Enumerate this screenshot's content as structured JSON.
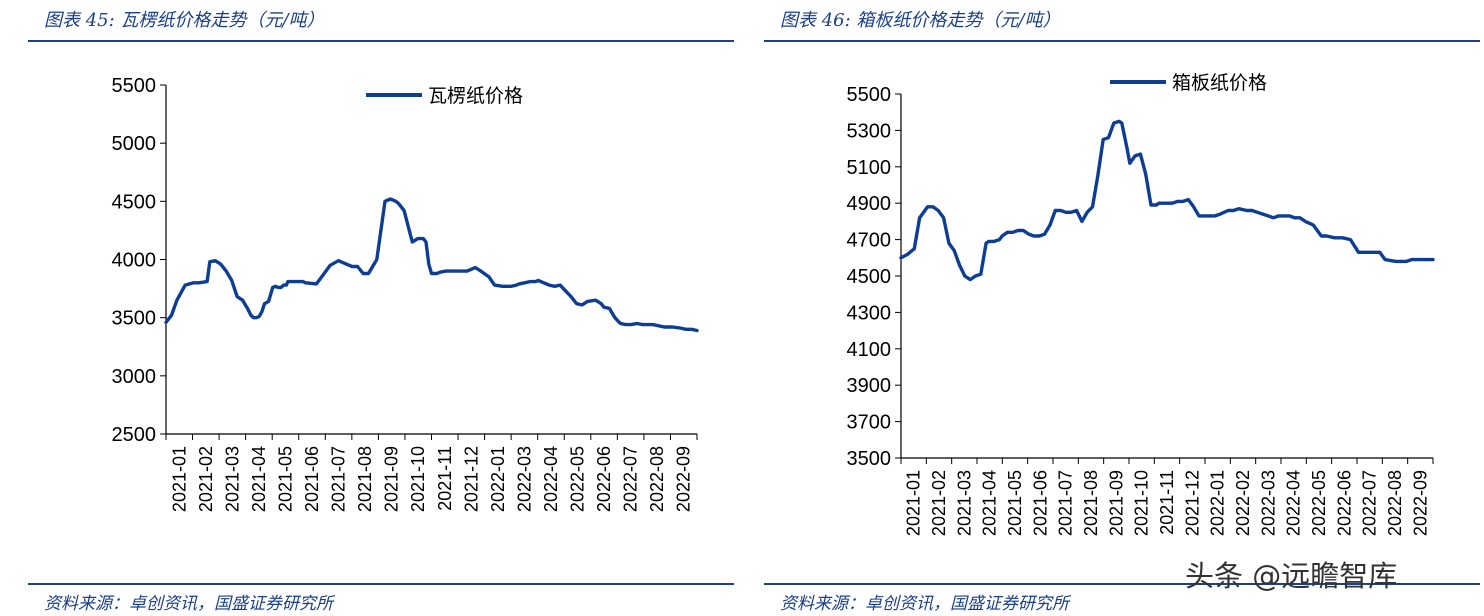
{
  "left": {
    "caption": "图表 45:  瓦楞纸价格走势（元/吨）",
    "source": "资料来源：卓创资讯，国盛证券研究所"
  },
  "right": {
    "caption": "图表 46:  箱板纸价格走势（元/吨）",
    "source": "资料来源：卓创资讯，国盛证券研究所"
  },
  "watermark": "头条 @远瞻智库",
  "colors": {
    "line": "#0e3d94",
    "accent": "#1a3f8f"
  },
  "chart_data": [
    {
      "type": "line",
      "title": "",
      "xlabel": "",
      "ylabel": "",
      "ylim": [
        2500,
        5500
      ],
      "yticks": [
        2500,
        3000,
        3500,
        4000,
        4500,
        5000,
        5500
      ],
      "categories": [
        "2021-01",
        "2021-02",
        "2021-03",
        "2021-04",
        "2021-05",
        "2021-06",
        "2021-07",
        "2021-08",
        "2021-09",
        "2021-10",
        "2021-11",
        "2021-12",
        "2022-01",
        "2022-03",
        "2022-04",
        "2022-05",
        "2022-06",
        "2022-07",
        "2022-08",
        "2022-09"
      ],
      "grid": false,
      "legend": "top-center",
      "series": [
        {
          "name": "瓦楞纸价格",
          "x": [
            0,
            0.2,
            0.4,
            0.7,
            1.0,
            1.2,
            1.5,
            1.6,
            1.8,
            2.0,
            2.2,
            2.4,
            2.6,
            2.8,
            3.0,
            3.1,
            3.2,
            3.3,
            3.4,
            3.5,
            3.6,
            3.75,
            3.9,
            4.0,
            4.1,
            4.2,
            4.25,
            4.3,
            4.4,
            4.45,
            4.6,
            4.8,
            5.0,
            5.1,
            5.5,
            6.0,
            6.3,
            6.6,
            6.8,
            7.0,
            7.2,
            7.4,
            7.5,
            7.7,
            8.0,
            8.2,
            8.4,
            8.5,
            8.7,
            9.0,
            9.2,
            9.4,
            9.5,
            9.6,
            9.7,
            9.8,
            9.9,
            10.0,
            10.2,
            10.3,
            10.4,
            10.5,
            10.7,
            11.0,
            11.3,
            11.5,
            11.8,
            12.0,
            12.3,
            12.6,
            12.8,
            12.9,
            13.1,
            13.3,
            13.5,
            13.6,
            13.8,
            14.0,
            14.2,
            14.4,
            14.6,
            14.8,
            15.0,
            15.2,
            15.4,
            15.7,
            15.9,
            16.0,
            16.2,
            16.4,
            16.6,
            16.8,
            17.0,
            17.2,
            17.4,
            17.6,
            17.8,
            18.0,
            18.2,
            18.5,
            18.8,
            19.0,
            19.2,
            19.4
          ],
          "values": [
            3460,
            3520,
            3650,
            3780,
            3800,
            3800,
            3810,
            3980,
            3990,
            3960,
            3900,
            3820,
            3680,
            3650,
            3570,
            3520,
            3500,
            3500,
            3510,
            3550,
            3620,
            3640,
            3760,
            3770,
            3760,
            3760,
            3770,
            3780,
            3780,
            3810,
            3810,
            3810,
            3810,
            3800,
            3790,
            3950,
            3990,
            3960,
            3940,
            3940,
            3880,
            3880,
            3920,
            4000,
            4500,
            4520,
            4500,
            4480,
            4420,
            4150,
            4180,
            4180,
            4150,
            3960,
            3880,
            3880,
            3880,
            3890,
            3900,
            3900,
            3900,
            3900,
            3900,
            3900,
            3930,
            3900,
            3850,
            3780,
            3770,
            3770,
            3780,
            3790,
            3800,
            3810,
            3810,
            3820,
            3800,
            3780,
            3770,
            3780,
            3730,
            3680,
            3620,
            3610,
            3640,
            3650,
            3620,
            3590,
            3580,
            3500,
            3450,
            3440,
            3440,
            3450,
            3440,
            3440,
            3440,
            3430,
            3420,
            3420,
            3410,
            3400,
            3400,
            3390
          ]
        }
      ]
    },
    {
      "type": "line",
      "title": "",
      "xlabel": "",
      "ylabel": "",
      "ylim": [
        3500,
        5500
      ],
      "yticks": [
        3500,
        3700,
        3900,
        4100,
        4300,
        4500,
        4700,
        4900,
        5100,
        5300,
        5500
      ],
      "categories": [
        "2021-01",
        "2021-02",
        "2021-03",
        "2021-04",
        "2021-05",
        "2021-06",
        "2021-07",
        "2021-08",
        "2021-09",
        "2021-10",
        "2021-11",
        "2021-12",
        "2022-01",
        "2022-02",
        "2022-03",
        "2022-04",
        "2022-05",
        "2022-06",
        "2022-07",
        "2022-08",
        "2022-09"
      ],
      "grid": false,
      "legend": "top-center",
      "series": [
        {
          "name": "箱板纸价格",
          "x": [
            0,
            0.25,
            0.5,
            0.7,
            0.8,
            1.0,
            1.2,
            1.4,
            1.6,
            1.8,
            2.0,
            2.2,
            2.4,
            2.6,
            2.8,
            3.0,
            3.2,
            3.3,
            3.5,
            3.7,
            3.8,
            4.0,
            4.2,
            4.4,
            4.6,
            4.8,
            5.0,
            5.2,
            5.4,
            5.6,
            5.8,
            6.0,
            6.2,
            6.4,
            6.6,
            6.8,
            7.0,
            7.2,
            7.4,
            7.6,
            7.8,
            8.0,
            8.2,
            8.3,
            8.5,
            8.6,
            8.8,
            9.0,
            9.2,
            9.4,
            9.6,
            9.7,
            9.8,
            10.0,
            10.2,
            10.4,
            10.6,
            10.8,
            11.0,
            11.2,
            11.4,
            11.6,
            11.8,
            12.0,
            12.3,
            12.5,
            12.7,
            13.0,
            13.2,
            13.4,
            13.6,
            13.8,
            14.0,
            14.2,
            14.4,
            14.6,
            14.8,
            15.0,
            15.2,
            15.5,
            15.8,
            16.0,
            16.3,
            16.6,
            16.9,
            17.2,
            17.5,
            17.8,
            18.0,
            18.2,
            18.6,
            19.0,
            19.2,
            19.4,
            19.6,
            19.8,
            20.0
          ],
          "values": [
            4600,
            4620,
            4650,
            4820,
            4840,
            4880,
            4880,
            4860,
            4820,
            4680,
            4640,
            4560,
            4500,
            4480,
            4500,
            4510,
            4680,
            4690,
            4690,
            4700,
            4720,
            4740,
            4740,
            4750,
            4750,
            4730,
            4720,
            4720,
            4730,
            4780,
            4860,
            4860,
            4850,
            4850,
            4860,
            4800,
            4850,
            4880,
            5050,
            5250,
            5260,
            5340,
            5350,
            5340,
            5200,
            5120,
            5160,
            5170,
            5060,
            4890,
            4890,
            4900,
            4900,
            4900,
            4900,
            4910,
            4910,
            4920,
            4880,
            4830,
            4830,
            4830,
            4830,
            4840,
            4860,
            4860,
            4870,
            4860,
            4860,
            4850,
            4840,
            4830,
            4820,
            4830,
            4830,
            4830,
            4820,
            4820,
            4800,
            4780,
            4720,
            4720,
            4710,
            4710,
            4700,
            4630,
            4630,
            4630,
            4630,
            4590,
            4580,
            4580,
            4590,
            4590,
            4590,
            4590,
            4590
          ]
        }
      ]
    }
  ]
}
